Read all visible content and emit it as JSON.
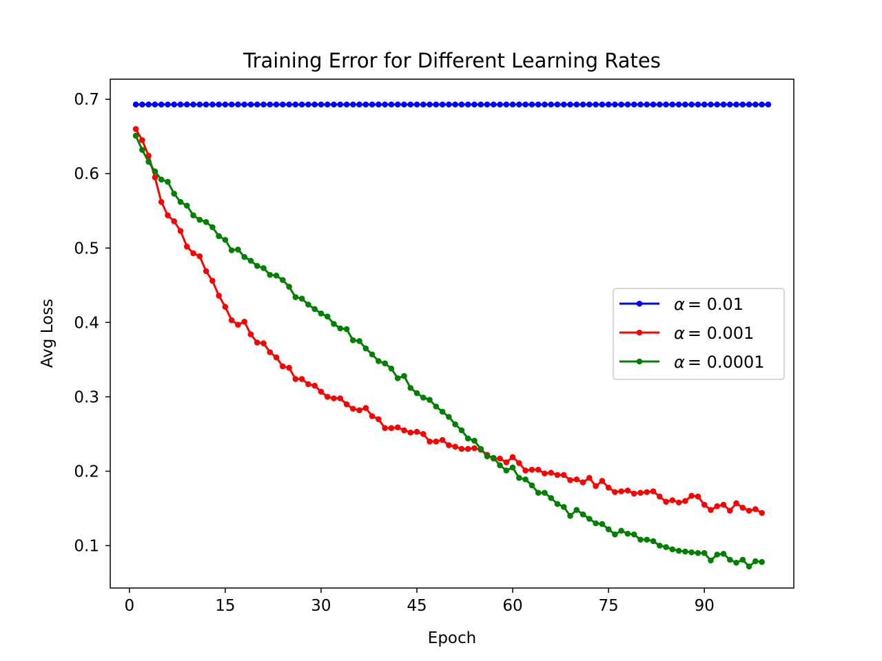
{
  "chart_data": {
    "type": "line",
    "title": "Training Error for Different Learning Rates",
    "xlabel": "Epoch",
    "ylabel": "Avg Loss",
    "xlim": [
      -3,
      104
    ],
    "ylim": [
      0.043,
      0.727
    ],
    "xticks": [
      "0",
      "15",
      "30",
      "45",
      "60",
      "75",
      "90"
    ],
    "yticks": [
      "0.1",
      "0.2",
      "0.3",
      "0.4",
      "0.5",
      "0.6",
      "0.7"
    ],
    "grid": false,
    "legend_position": "center-right",
    "x_start": 1,
    "series": [
      {
        "name": "α = 0.01",
        "label_prefix": "α",
        "label_value": "= 0.01",
        "color": "#0000ff",
        "values": [
          0.693,
          0.693,
          0.693,
          0.693,
          0.693,
          0.693,
          0.693,
          0.693,
          0.693,
          0.693,
          0.693,
          0.693,
          0.693,
          0.693,
          0.693,
          0.693,
          0.693,
          0.693,
          0.693,
          0.693,
          0.693,
          0.693,
          0.693,
          0.693,
          0.693,
          0.693,
          0.693,
          0.693,
          0.693,
          0.693,
          0.693,
          0.693,
          0.693,
          0.693,
          0.693,
          0.693,
          0.693,
          0.693,
          0.693,
          0.693,
          0.693,
          0.693,
          0.693,
          0.693,
          0.693,
          0.693,
          0.693,
          0.693,
          0.693,
          0.693,
          0.693,
          0.693,
          0.693,
          0.693,
          0.693,
          0.693,
          0.693,
          0.693,
          0.693,
          0.693,
          0.693,
          0.693,
          0.693,
          0.693,
          0.693,
          0.693,
          0.693,
          0.693,
          0.693,
          0.693,
          0.693,
          0.693,
          0.693,
          0.693,
          0.693,
          0.693,
          0.693,
          0.693,
          0.693,
          0.693,
          0.693,
          0.693,
          0.693,
          0.693,
          0.693,
          0.693,
          0.693,
          0.693,
          0.693,
          0.693,
          0.693,
          0.693,
          0.693,
          0.693,
          0.693,
          0.693,
          0.693,
          0.693,
          0.693,
          0.693
        ]
      },
      {
        "name": "α = 0.001",
        "label_prefix": "α",
        "label_value": "= 0.001",
        "color": "#ff0000",
        "values": [
          0.66,
          0.645,
          0.624,
          0.595,
          0.562,
          0.544,
          0.536,
          0.523,
          0.502,
          0.493,
          0.489,
          0.469,
          0.456,
          0.436,
          0.421,
          0.403,
          0.397,
          0.401,
          0.384,
          0.373,
          0.372,
          0.36,
          0.353,
          0.341,
          0.339,
          0.324,
          0.324,
          0.317,
          0.315,
          0.307,
          0.3,
          0.298,
          0.298,
          0.29,
          0.284,
          0.282,
          0.285,
          0.274,
          0.27,
          0.258,
          0.258,
          0.259,
          0.255,
          0.252,
          0.253,
          0.25,
          0.24,
          0.24,
          0.242,
          0.235,
          0.233,
          0.23,
          0.23,
          0.231,
          0.229,
          0.222,
          0.217,
          0.217,
          0.212,
          0.219,
          0.211,
          0.201,
          0.202,
          0.202,
          0.197,
          0.198,
          0.195,
          0.195,
          0.188,
          0.189,
          0.185,
          0.191,
          0.18,
          0.187,
          0.178,
          0.172,
          0.173,
          0.174,
          0.17,
          0.171,
          0.172,
          0.173,
          0.166,
          0.159,
          0.161,
          0.158,
          0.16,
          0.167,
          0.166,
          0.155,
          0.148,
          0.153,
          0.155,
          0.147,
          0.157,
          0.151,
          0.147,
          0.149,
          0.144
        ]
      },
      {
        "name": "α = 0.0001",
        "label_prefix": "α",
        "label_value": "= 0.0001",
        "color": "#008000",
        "values": [
          0.651,
          0.632,
          0.616,
          0.603,
          0.592,
          0.589,
          0.573,
          0.562,
          0.557,
          0.544,
          0.538,
          0.535,
          0.528,
          0.516,
          0.511,
          0.497,
          0.498,
          0.488,
          0.483,
          0.476,
          0.473,
          0.464,
          0.463,
          0.457,
          0.448,
          0.434,
          0.432,
          0.424,
          0.418,
          0.412,
          0.408,
          0.398,
          0.392,
          0.391,
          0.376,
          0.375,
          0.365,
          0.357,
          0.348,
          0.345,
          0.338,
          0.325,
          0.328,
          0.312,
          0.305,
          0.299,
          0.296,
          0.287,
          0.28,
          0.273,
          0.263,
          0.255,
          0.244,
          0.241,
          0.23,
          0.22,
          0.218,
          0.208,
          0.201,
          0.205,
          0.191,
          0.189,
          0.181,
          0.171,
          0.171,
          0.164,
          0.156,
          0.152,
          0.14,
          0.148,
          0.142,
          0.136,
          0.13,
          0.129,
          0.122,
          0.115,
          0.12,
          0.116,
          0.115,
          0.108,
          0.108,
          0.106,
          0.1,
          0.098,
          0.095,
          0.093,
          0.092,
          0.091,
          0.09,
          0.09,
          0.08,
          0.088,
          0.089,
          0.081,
          0.077,
          0.081,
          0.072,
          0.079,
          0.078
        ]
      }
    ]
  }
}
